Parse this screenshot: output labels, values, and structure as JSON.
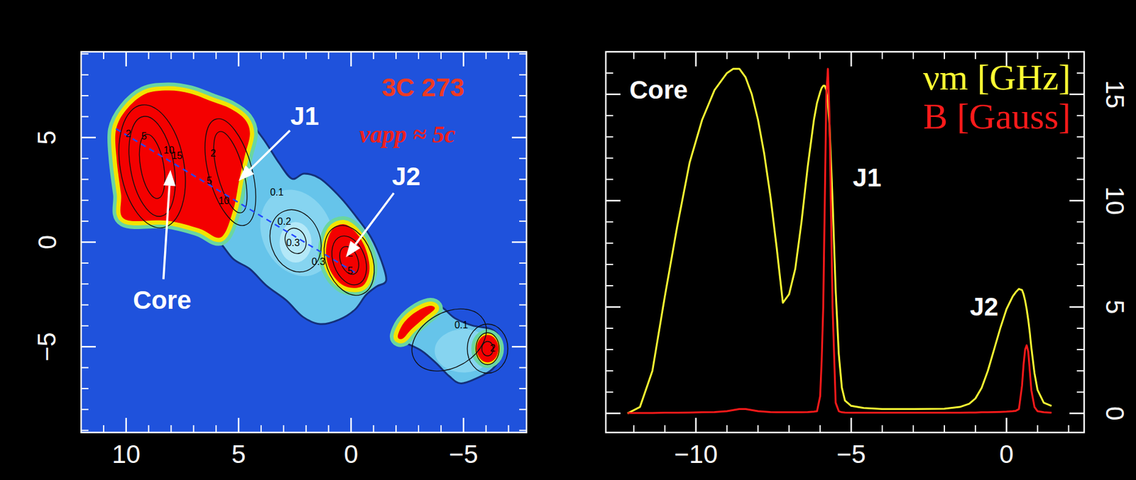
{
  "chart_data": [
    {
      "type": "contour",
      "xlim": [
        12,
        -7.8
      ],
      "ylim": [
        -9.1,
        9.1
      ],
      "xticks": [
        10,
        5,
        0,
        {
          "value": -5,
          "label": "−5"
        }
      ],
      "yticks": [
        {
          "value": -5,
          "label": "−5"
        },
        0,
        5
      ],
      "annotations": [
        {
          "text": "3C 273",
          "x": -3.2,
          "y": 7.4,
          "color": "#ee3a22"
        },
        {
          "text": "vapp ≈ 5c",
          "x": -2.5,
          "y": 5.14,
          "color": "#ee2020"
        },
        {
          "text": "Core",
          "x": 8.4,
          "y": -2.76,
          "arrow_x": 8.03,
          "arrow_y": 3.45,
          "color": "#ffffff"
        },
        {
          "text": "J1",
          "x": 2.06,
          "y": 6.03,
          "arrow_x": 5.0,
          "arrow_y": 2.93,
          "color": "#ffffff"
        },
        {
          "text": "J2",
          "x": -2.45,
          "y": 3.14,
          "arrow_x": 0.23,
          "arrow_y": -0.72,
          "color": "#ffffff"
        }
      ],
      "contour_labels": [
        {
          "text": "2",
          "x": 9.9,
          "y": 5.17
        },
        {
          "text": "5",
          "x": 9.2,
          "y": 5.07
        },
        {
          "text": "10",
          "x": 8.1,
          "y": 4.4
        },
        {
          "text": "15",
          "x": 7.74,
          "y": 4.14
        },
        {
          "text": "2",
          "x": 6.13,
          "y": 4.24
        },
        {
          "text": "5",
          "x": 6.3,
          "y": 2.93
        },
        {
          "text": "10",
          "x": 5.65,
          "y": 1.97
        },
        {
          "text": "0.1",
          "x": 3.3,
          "y": 2.38
        },
        {
          "text": "0.2",
          "x": 2.97,
          "y": 1.0
        },
        {
          "text": "0.3",
          "x": 2.58,
          "y": -0.03
        },
        {
          "text": "0.3",
          "x": 1.45,
          "y": -0.93
        },
        {
          "text": "2",
          "x": 0.03,
          "y": -0.52
        },
        {
          "text": "5",
          "x": 0.03,
          "y": -1.38
        },
        {
          "text": "0.1",
          "x": -4.9,
          "y": -3.97
        },
        {
          "text": "2",
          "x": -6.3,
          "y": -5.07
        }
      ]
    },
    {
      "type": "line",
      "x": [
        -12.2,
        -11.8,
        -11.4,
        -11.0,
        -10.6,
        -10.2,
        -9.8,
        -9.4,
        -9.0,
        -8.8,
        -8.6,
        -8.4,
        -8.2,
        -8.0,
        -7.8,
        -7.6,
        -7.4,
        -7.2,
        -7.0,
        -6.8,
        -6.6,
        -6.4,
        -6.2,
        -6.1,
        -6.0,
        -5.95,
        -5.9,
        -5.85,
        -5.8,
        -5.75,
        -5.7,
        -5.6,
        -5.5,
        -5.4,
        -5.3,
        -5.2,
        -5.0,
        -4.6,
        -4.0,
        -3.0,
        -2.0,
        -1.5,
        -1.2,
        -1.0,
        -0.8,
        -0.6,
        -0.4,
        -0.2,
        0.0,
        0.2,
        0.3,
        0.4,
        0.5,
        0.55,
        0.6,
        0.65,
        0.7,
        0.75,
        0.8,
        0.9,
        1.0,
        1.2,
        1.45
      ],
      "series": [
        {
          "name": "νm [GHz]",
          "color": "#ffff33",
          "values": [
            0,
            0.3,
            2.0,
            5.5,
            8.8,
            11.8,
            13.8,
            15.2,
            16.0,
            16.2,
            16.2,
            15.8,
            15.0,
            13.8,
            12.2,
            10.2,
            7.8,
            5.2,
            5.6,
            6.8,
            9.0,
            11.6,
            13.8,
            14.6,
            15.1,
            15.3,
            15.4,
            15.4,
            15.2,
            14.6,
            13.6,
            10.0,
            5.8,
            2.8,
            1.2,
            0.6,
            0.35,
            0.25,
            0.2,
            0.2,
            0.22,
            0.3,
            0.45,
            0.7,
            1.2,
            2.0,
            3.0,
            4.0,
            4.9,
            5.5,
            5.7,
            5.85,
            5.8,
            5.6,
            5.3,
            4.9,
            4.4,
            3.8,
            3.1,
            1.9,
            1.1,
            0.5,
            0.35
          ]
        },
        {
          "name": "B [Gauss]",
          "color": "#ff1a1a",
          "values": [
            0.02,
            0.02,
            0.02,
            0.03,
            0.03,
            0.04,
            0.05,
            0.06,
            0.1,
            0.15,
            0.2,
            0.2,
            0.15,
            0.1,
            0.08,
            0.06,
            0.05,
            0.05,
            0.05,
            0.05,
            0.05,
            0.06,
            0.08,
            0.1,
            0.8,
            2.5,
            5.0,
            10.0,
            15.0,
            16.2,
            14.0,
            5.0,
            0.5,
            0.1,
            0.05,
            0.04,
            0.03,
            0.03,
            0.03,
            0.03,
            0.03,
            0.03,
            0.04,
            0.04,
            0.05,
            0.05,
            0.06,
            0.07,
            0.08,
            0.1,
            0.12,
            0.2,
            1.3,
            2.3,
            3.0,
            3.2,
            2.9,
            2.0,
            1.1,
            0.3,
            0.1,
            0.05,
            0.03
          ]
        }
      ],
      "xlim": [
        -12.9,
        2.5
      ],
      "ylim": [
        -0.9,
        17
      ],
      "xticks": [
        {
          "value": -10,
          "label": "−10"
        },
        {
          "value": -5,
          "label": "−5"
        },
        0
      ],
      "yticks": [
        0,
        5,
        10,
        15
      ],
      "grid": false,
      "legend": "top-right",
      "annotations": [
        {
          "text": "Core",
          "x": -11.2,
          "y": 15.2,
          "color": "#ffffff"
        },
        {
          "text": "J1",
          "x": -4.49,
          "y": 11.1,
          "color": "#ffffff"
        },
        {
          "text": "J2",
          "x": -0.72,
          "y": 5.0,
          "color": "#ffffff"
        }
      ]
    }
  ]
}
